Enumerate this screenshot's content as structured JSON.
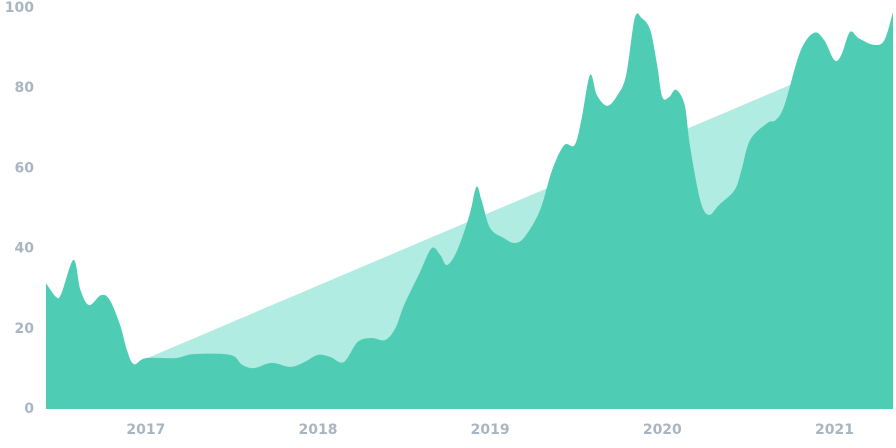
{
  "chart_data": {
    "type": "area",
    "xlim": [
      2016.42,
      2021.34
    ],
    "xticks": [
      2017,
      2018,
      2019,
      2020,
      2021
    ],
    "ylim": [
      0,
      100
    ],
    "yticks": [
      0,
      20,
      40,
      60,
      80,
      100
    ],
    "grid": false,
    "series": [
      {
        "color": "#b0ece1",
        "x": [
          2016.97,
          2021.0
        ],
        "values": [
          12,
          85.5
        ]
      },
      {
        "color": "#4ecdb4",
        "x": [
          2016.42,
          2016.48,
          2016.51,
          2016.58,
          2016.62,
          2016.67,
          2016.74,
          2016.79,
          2016.85,
          2016.89,
          2016.93,
          2017.0,
          2017.17,
          2017.28,
          2017.49,
          2017.56,
          2017.63,
          2017.73,
          2017.84,
          2017.92,
          2018.0,
          2018.07,
          2018.15,
          2018.23,
          2018.31,
          2018.39,
          2018.45,
          2018.5,
          2018.59,
          2018.66,
          2018.71,
          2018.75,
          2018.81,
          2018.88,
          2018.92,
          2018.95,
          2019.0,
          2019.08,
          2019.14,
          2019.2,
          2019.29,
          2019.36,
          2019.43,
          2019.49,
          2019.53,
          2019.58,
          2019.62,
          2019.68,
          2019.74,
          2019.79,
          2019.84,
          2019.88,
          2019.93,
          2019.97,
          2020.0,
          2020.04,
          2020.08,
          2020.13,
          2020.16,
          2020.22,
          2020.27,
          2020.33,
          2020.42,
          2020.46,
          2020.51,
          2020.61,
          2020.66,
          2020.71,
          2020.8,
          2020.88,
          2020.94,
          2021.0,
          2021.04,
          2021.09,
          2021.14,
          2021.23,
          2021.29,
          2021.34
        ],
        "values": [
          31.4,
          27.9,
          28.9,
          37.2,
          29.7,
          25.9,
          28.4,
          27.2,
          21,
          14.7,
          11.2,
          12.7,
          12.7,
          13.7,
          13.5,
          11,
          10.2,
          11.5,
          10.5,
          11.7,
          13.5,
          13,
          11.7,
          16.7,
          17.7,
          17.2,
          20.2,
          25.9,
          33.9,
          40.1,
          38.4,
          35.9,
          39.7,
          48.4,
          55.4,
          52.1,
          45.1,
          42.6,
          41.4,
          42.9,
          49.6,
          59.6,
          65.8,
          65.8,
          72.1,
          83.3,
          78.3,
          75.6,
          78.3,
          83.3,
          97.5,
          97.5,
          94.5,
          85.8,
          77.8,
          77.8,
          79.6,
          75.8,
          65.8,
          52.1,
          48.4,
          50.9,
          54.6,
          59.6,
          67.1,
          71.3,
          72.1,
          75.8,
          89,
          93.8,
          92,
          87,
          88.3,
          94,
          92.5,
          90.8,
          92,
          99
        ]
      }
    ]
  }
}
